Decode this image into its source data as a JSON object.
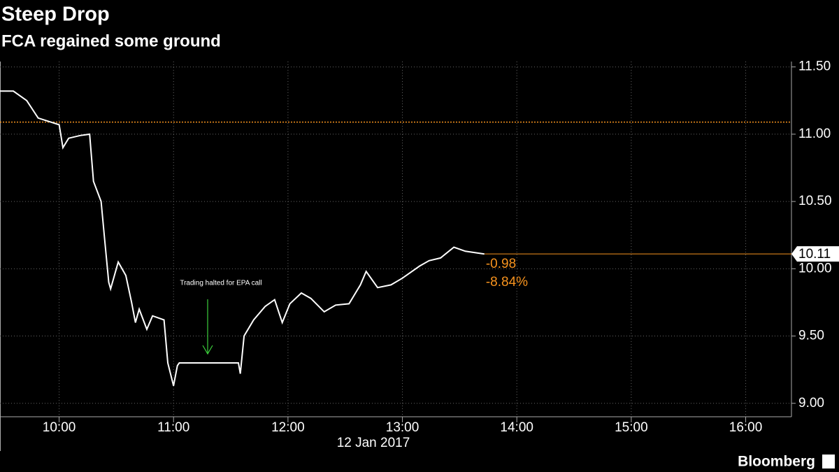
{
  "chart_data": {
    "type": "line",
    "title": "Steep Drop",
    "subtitle": "FCA regained some ground",
    "xlabel": "12 Jan 2017",
    "series": [
      {
        "name": "FCA",
        "color": "#ffffff",
        "x": [
          "09:29",
          "09:36",
          "09:43",
          "09:49",
          "10:00",
          "10:02",
          "10:05",
          "10:11",
          "10:16",
          "10:18",
          "10:22",
          "10:24",
          "10:26",
          "10:27",
          "10:31",
          "10:35",
          "10:38",
          "10:40",
          "10:42",
          "10:46",
          "10:49",
          "10:55",
          "10:57",
          "11:00",
          "11:02",
          "11:03",
          "11:34",
          "11:35",
          "11:37",
          "11:42",
          "11:48",
          "11:53",
          "11:57",
          "12:01",
          "12:07",
          "12:12",
          "12:19",
          "12:25",
          "12:32",
          "12:38",
          "12:41",
          "12:47",
          "12:54",
          "13:00",
          "13:09",
          "13:14",
          "13:20",
          "13:27",
          "13:33",
          "13:38",
          "13:43"
        ],
        "values": [
          11.32,
          11.32,
          11.25,
          11.12,
          11.07,
          10.9,
          10.97,
          10.99,
          11.0,
          10.65,
          10.5,
          10.2,
          9.9,
          9.85,
          10.05,
          9.95,
          9.75,
          9.6,
          9.7,
          9.55,
          9.65,
          9.62,
          9.3,
          9.13,
          9.28,
          9.3,
          9.3,
          9.22,
          9.5,
          9.62,
          9.72,
          9.77,
          9.6,
          9.74,
          9.82,
          9.78,
          9.68,
          9.73,
          9.74,
          9.88,
          9.98,
          9.86,
          9.88,
          9.93,
          10.02,
          10.06,
          10.08,
          10.16,
          10.13,
          10.12,
          10.11
        ]
      }
    ],
    "reference_line": {
      "value": 11.09,
      "color": "#f7931e"
    },
    "last_color": "#f7931e",
    "change_labels": [
      "-0.98",
      "-8.84%"
    ],
    "annotation": "Trading halted for EPA call",
    "annotation_color": "#3ccf3c",
    "source": "Bloomberg",
    "xlim": [
      "09:29",
      "16:24"
    ],
    "xticks": [
      "10:00",
      "11:00",
      "12:00",
      "13:00",
      "14:00",
      "15:00",
      "16:00"
    ],
    "ylim": [
      8.9,
      11.54
    ],
    "yticks": [
      {
        "value": 9.0,
        "label": "9.00"
      },
      {
        "value": 9.5,
        "label": "9.50"
      },
      {
        "value": 10.0,
        "label": "10.00"
      },
      {
        "value": 10.5,
        "label": "10.50"
      },
      {
        "value": 11.0,
        "label": "11.00"
      },
      {
        "value": 11.5,
        "label": "11.50"
      }
    ],
    "grid": true
  }
}
